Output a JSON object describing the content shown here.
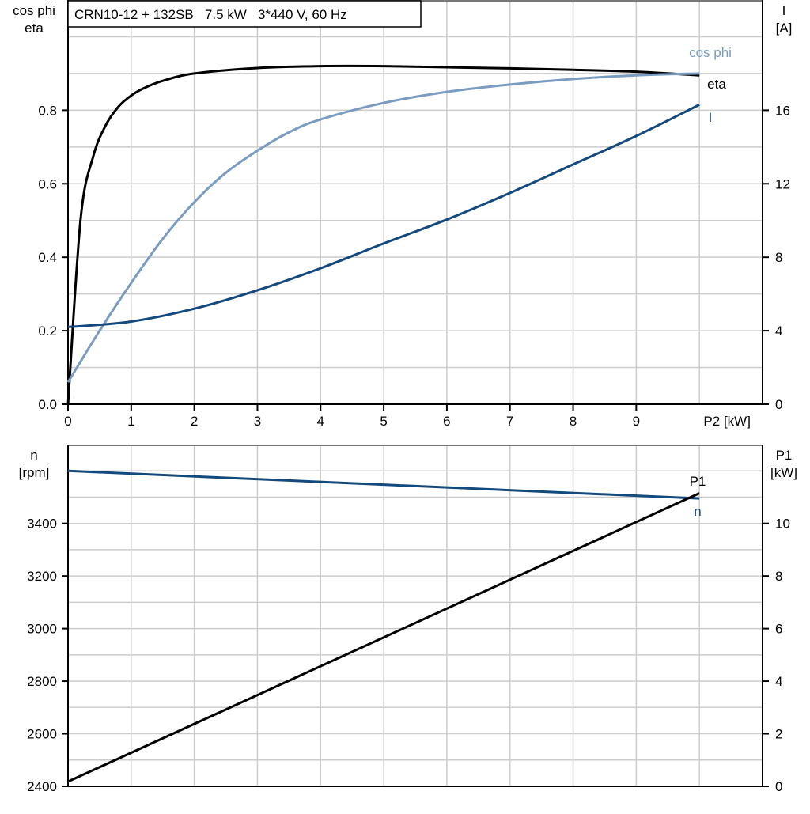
{
  "chart_data": [
    {
      "type": "line",
      "title": "CRN10-12 + 132SB   7.5 kW   3*440 V, 60 Hz",
      "xlabel": "P2 [kW]",
      "ylabel_left": [
        "cos phi",
        "eta"
      ],
      "ylabel_right": [
        "I",
        "[A]"
      ],
      "xlim": [
        0,
        11
      ],
      "ylim_left": [
        0,
        1.1
      ],
      "ylim_right": [
        0,
        22
      ],
      "x_ticks": [
        0,
        1,
        2,
        3,
        4,
        5,
        6,
        7,
        8,
        9
      ],
      "y_ticks_left": [
        "0.0",
        "0.2",
        "0.4",
        "0.6",
        "0.8"
      ],
      "y_ticks_right": [
        "0",
        "4",
        "8",
        "12",
        "16"
      ],
      "grid": true,
      "series": [
        {
          "name": "eta",
          "axis": "left",
          "color": "#000000",
          "x": [
            0,
            0.2,
            0.4,
            0.6,
            0.8,
            1,
            1.2,
            1.5,
            2,
            3,
            4,
            5,
            6,
            7,
            8,
            9,
            10
          ],
          "y": [
            0,
            0.505,
            0.675,
            0.76,
            0.81,
            0.84,
            0.86,
            0.88,
            0.9,
            0.915,
            0.92,
            0.92,
            0.917,
            0.914,
            0.91,
            0.905,
            0.895
          ]
        },
        {
          "name": "cos phi",
          "axis": "left",
          "color": "#7a9cc0",
          "x": [
            0,
            0.5,
            1,
            1.5,
            2,
            2.5,
            3,
            3.5,
            4,
            5,
            6,
            7,
            8,
            9,
            10
          ],
          "y": [
            0.06,
            0.2,
            0.33,
            0.45,
            0.55,
            0.63,
            0.69,
            0.74,
            0.775,
            0.82,
            0.85,
            0.87,
            0.885,
            0.895,
            0.9
          ]
        },
        {
          "name": "I",
          "axis": "right",
          "color": "#14497e",
          "x": [
            0,
            1,
            2,
            3,
            4,
            5,
            6,
            7,
            8,
            9,
            10
          ],
          "y": [
            4.2,
            4.5,
            5.2,
            6.2,
            7.4,
            8.75,
            10.05,
            11.5,
            13.05,
            14.6,
            16.3
          ]
        }
      ]
    },
    {
      "type": "line",
      "xlim": [
        0,
        11
      ],
      "ylabel_left": [
        "n",
        "[rpm]"
      ],
      "ylabel_right": [
        "P1",
        "[kW]"
      ],
      "ylim_left": [
        2400,
        3700
      ],
      "ylim_right": [
        0,
        13
      ],
      "y_ticks_left": [
        "2400",
        "2600",
        "2800",
        "3000",
        "3200",
        "3400"
      ],
      "y_ticks_right": [
        "0",
        "2",
        "4",
        "6",
        "8",
        "10"
      ],
      "grid": true,
      "series": [
        {
          "name": "n",
          "axis": "left",
          "color": "#14497e",
          "x": [
            0,
            10
          ],
          "y": [
            3600,
            3495
          ]
        },
        {
          "name": "P1",
          "axis": "right",
          "color": "#000000",
          "x": [
            0,
            10
          ],
          "y": [
            0.18,
            11.15
          ]
        }
      ]
    }
  ]
}
